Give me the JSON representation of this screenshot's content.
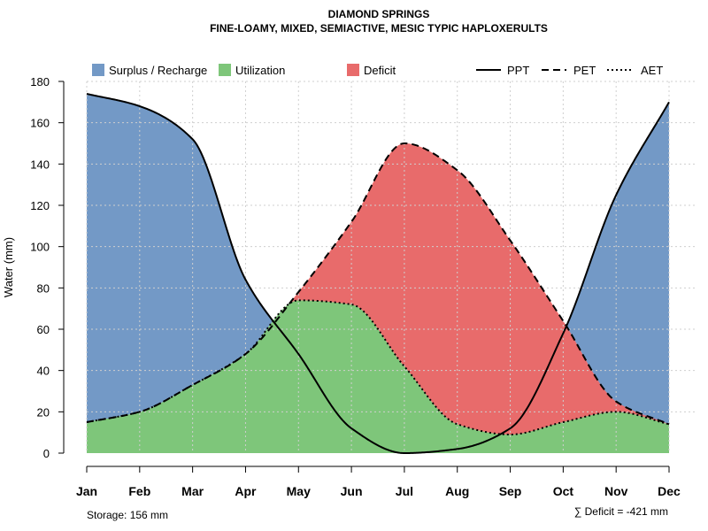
{
  "chart_data": {
    "type": "area",
    "title": "DIAMOND SPRINGS",
    "subtitle": "FINE-LOAMY, MIXED, SEMIACTIVE, MESIC TYPIC HAPLOXERULTS",
    "xlabel": "",
    "ylabel": "Water (mm)",
    "ylim": [
      0,
      180
    ],
    "yticks": [
      0,
      20,
      40,
      60,
      80,
      100,
      120,
      140,
      160,
      180
    ],
    "grid": true,
    "categories": [
      "Jan",
      "Feb",
      "Mar",
      "Apr",
      "May",
      "Jun",
      "Jul",
      "Aug",
      "Sep",
      "Oct",
      "Nov",
      "Dec"
    ],
    "series": [
      {
        "name": "PPT",
        "style": "solid",
        "values": [
          174,
          168,
          152,
          84,
          48,
          12,
          0,
          2,
          12,
          58,
          125,
          170
        ]
      },
      {
        "name": "PET",
        "style": "dashed",
        "values": [
          15,
          20,
          33,
          48,
          78,
          112,
          150,
          137,
          103,
          64,
          25,
          14
        ]
      },
      {
        "name": "AET",
        "style": "dotted",
        "values": [
          15,
          20,
          33,
          48,
          74,
          72,
          42,
          14,
          9,
          15,
          20,
          14
        ]
      }
    ],
    "legend": {
      "position": "top",
      "fills": [
        {
          "label": "Surplus / Recharge",
          "color": "#7399c6"
        },
        {
          "label": "Utilization",
          "color": "#7ec67a"
        },
        {
          "label": "Deficit",
          "color": "#e86b6b"
        }
      ],
      "lines": [
        {
          "label": "PPT",
          "style": "solid"
        },
        {
          "label": "PET",
          "style": "dashed"
        },
        {
          "label": "AET",
          "style": "dotted"
        }
      ]
    },
    "annotations": {
      "storage": "Storage: 156 mm",
      "deficit": "∑ Deficit = -421 mm"
    }
  }
}
